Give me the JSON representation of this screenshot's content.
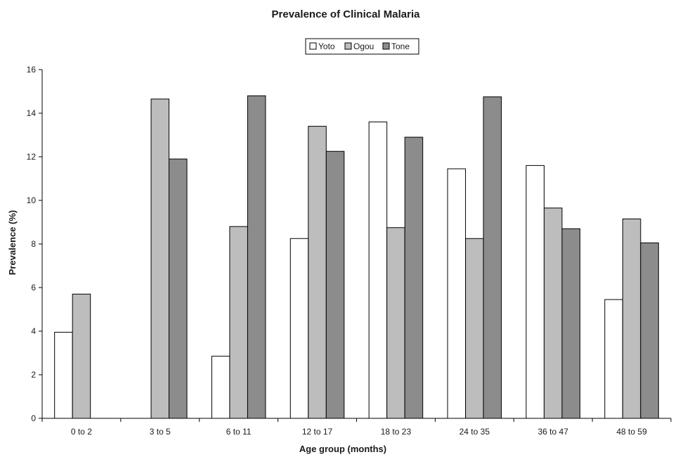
{
  "chart_data": {
    "type": "bar",
    "title": "Prevalence of Clinical Malaria",
    "xlabel": "Age group (months)",
    "ylabel": "Prevalence (%)",
    "ylim": [
      0,
      16
    ],
    "yticks": [
      0,
      2,
      4,
      6,
      8,
      10,
      12,
      14,
      16
    ],
    "grid": false,
    "legend_position": "top-center",
    "categories": [
      "0 to 2",
      "3 to 5",
      "6 to 11",
      "12 to 17",
      "18 to 23",
      "24 to 35",
      "36 to 47",
      "48 to 59"
    ],
    "series": [
      {
        "name": "Yoto",
        "color": "#ffffff",
        "values": [
          3.95,
          0,
          2.85,
          8.25,
          13.6,
          11.45,
          11.6,
          5.45
        ]
      },
      {
        "name": "Ogou",
        "color": "#bdbdbd",
        "values": [
          5.7,
          14.65,
          8.8,
          13.4,
          8.75,
          8.25,
          9.65,
          9.15
        ]
      },
      {
        "name": "Tone",
        "color": "#8c8c8c",
        "values": [
          0,
          11.9,
          14.8,
          12.25,
          12.9,
          14.75,
          8.7,
          8.05
        ]
      }
    ]
  }
}
